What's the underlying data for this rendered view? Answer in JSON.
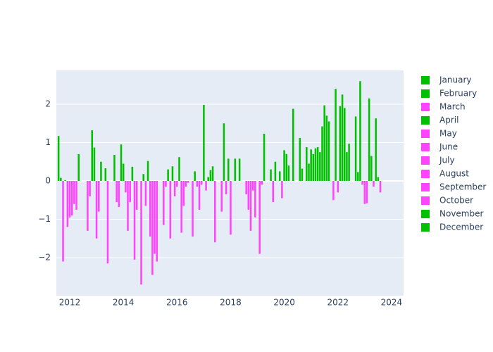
{
  "chart_data": {
    "type": "bar",
    "grid": true,
    "positive_color": "#00c000",
    "negative_color": "#ff44ff",
    "xlim": [
      2011.5,
      2024.45
    ],
    "xticks": [
      2012,
      2014,
      2016,
      2018,
      2020,
      2022,
      2024
    ],
    "ylim": [
      -2.99,
      2.88
    ],
    "yticks": [
      {
        "value": -2,
        "label": "−2"
      },
      {
        "value": -1,
        "label": "−1"
      },
      0,
      1,
      2
    ],
    "series": [
      {
        "name": "January",
        "color": "#00c000",
        "x": [
          2012,
          2013,
          2014,
          2015,
          2016,
          2017,
          2018,
          2019,
          2020,
          2021,
          2022,
          2023
        ],
        "values": [
          -0.95,
          -1.5,
          0.45,
          -1.45,
          -0.15,
          1.98,
          -1.4,
          0,
          0.8,
          0.82,
          -0.3,
          -0.6
        ]
      },
      {
        "name": "February",
        "color": "#00c000",
        "x": [
          2012,
          2013,
          2014,
          2015,
          2016,
          2017,
          2018,
          2019,
          2020,
          2021,
          2022,
          2023
        ],
        "values": [
          -0.9,
          -0.8,
          -0.3,
          -2.45,
          0.62,
          -0.25,
          0,
          -1.9,
          0.7,
          0.7,
          1.95,
          -0.58
        ]
      },
      {
        "name": "March",
        "color": "#ff44ff",
        "x": [
          2012,
          2013,
          2014,
          2015,
          2016,
          2017,
          2018,
          2019,
          2020,
          2021,
          2022,
          2023
        ],
        "values": [
          -0.6,
          0.5,
          -1.3,
          -1.9,
          -1.35,
          0.1,
          0.58,
          -0.1,
          0.4,
          0.85,
          2.25,
          2.15
        ]
      },
      {
        "name": "April",
        "color": "#00c000",
        "x": [
          2012,
          2013,
          2014,
          2015,
          2016,
          2017,
          2018,
          2019,
          2020,
          2021,
          2022,
          2023
        ],
        "values": [
          -0.75,
          0,
          -0.55,
          -2.1,
          -0.65,
          0.28,
          0,
          1.23,
          0,
          0.88,
          1.9,
          0.65
        ]
      },
      {
        "name": "May",
        "color": "#ff44ff",
        "x": [
          2012,
          2013,
          2014,
          2015,
          2016,
          2017,
          2018,
          2019,
          2020,
          2021,
          2022,
          2023
        ],
        "values": [
          0.7,
          0.33,
          0.37,
          0,
          -0.15,
          0.38,
          0.58,
          0,
          1.88,
          0.75,
          0.75,
          -0.15
        ]
      },
      {
        "name": "June",
        "color": "#ff44ff",
        "x": [
          2012,
          2013,
          2014,
          2015,
          2016,
          2017,
          2018,
          2019,
          2020,
          2021,
          2022,
          2023
        ],
        "values": [
          0,
          -2.15,
          -2.05,
          0,
          -0.05,
          -1.6,
          0,
          0,
          0,
          1.42,
          0.97,
          1.63
        ]
      },
      {
        "name": "July",
        "color": "#ff44ff",
        "x": [
          2012,
          2013,
          2014,
          2015,
          2016,
          2017,
          2018,
          2019,
          2020,
          2021,
          2022,
          2023
        ],
        "values": [
          0,
          0,
          -0.75,
          -1.15,
          0,
          0,
          0,
          0.3,
          0,
          1.97,
          0,
          0.1
        ]
      },
      {
        "name": "August",
        "color": "#ff44ff",
        "x": [
          2011,
          2012,
          2013,
          2014,
          2015,
          2016,
          2017,
          2018,
          2019,
          2020,
          2021,
          2022,
          2023
        ],
        "values": [
          1.17,
          0,
          0,
          0,
          -0.15,
          -1.45,
          0,
          -0.35,
          -0.55,
          1.12,
          1.7,
          0,
          -0.3
        ]
      },
      {
        "name": "September",
        "color": "#ff44ff",
        "x": [
          2011,
          2012,
          2013,
          2014,
          2015,
          2016,
          2017,
          2018,
          2019,
          2020,
          2021,
          2022
        ],
        "values": [
          0.08,
          -1.3,
          0.68,
          -2.7,
          0.3,
          0.25,
          -0.8,
          -0.75,
          0.5,
          0.32,
          1.55,
          1.68
        ]
      },
      {
        "name": "October",
        "color": "#ff44ff",
        "x": [
          2011,
          2012,
          2013,
          2014,
          2015,
          2016,
          2017,
          2018,
          2019,
          2020,
          2021,
          2022
        ],
        "values": [
          -2.1,
          -0.4,
          -0.55,
          0.18,
          -1.5,
          -0.15,
          1.5,
          -1.3,
          0,
          0,
          0,
          0.23
        ]
      },
      {
        "name": "November",
        "color": "#00c000",
        "x": [
          2011,
          2012,
          2013,
          2014,
          2015,
          2016,
          2017,
          2018,
          2019,
          2020,
          2021,
          2022
        ],
        "values": [
          0.02,
          1.32,
          -0.68,
          -0.65,
          0.38,
          -0.75,
          -0.35,
          -0.25,
          0.25,
          0.88,
          -0.5,
          2.6
        ]
      },
      {
        "name": "December",
        "color": "#00c000",
        "x": [
          2011,
          2012,
          2013,
          2014,
          2015,
          2016,
          2017,
          2018,
          2019,
          2020,
          2021,
          2022
        ],
        "values": [
          -1.2,
          0.87,
          0.95,
          0.52,
          -0.4,
          -0.1,
          0.58,
          -0.95,
          -0.45,
          0.45,
          2.4,
          -0.1
        ]
      }
    ]
  }
}
